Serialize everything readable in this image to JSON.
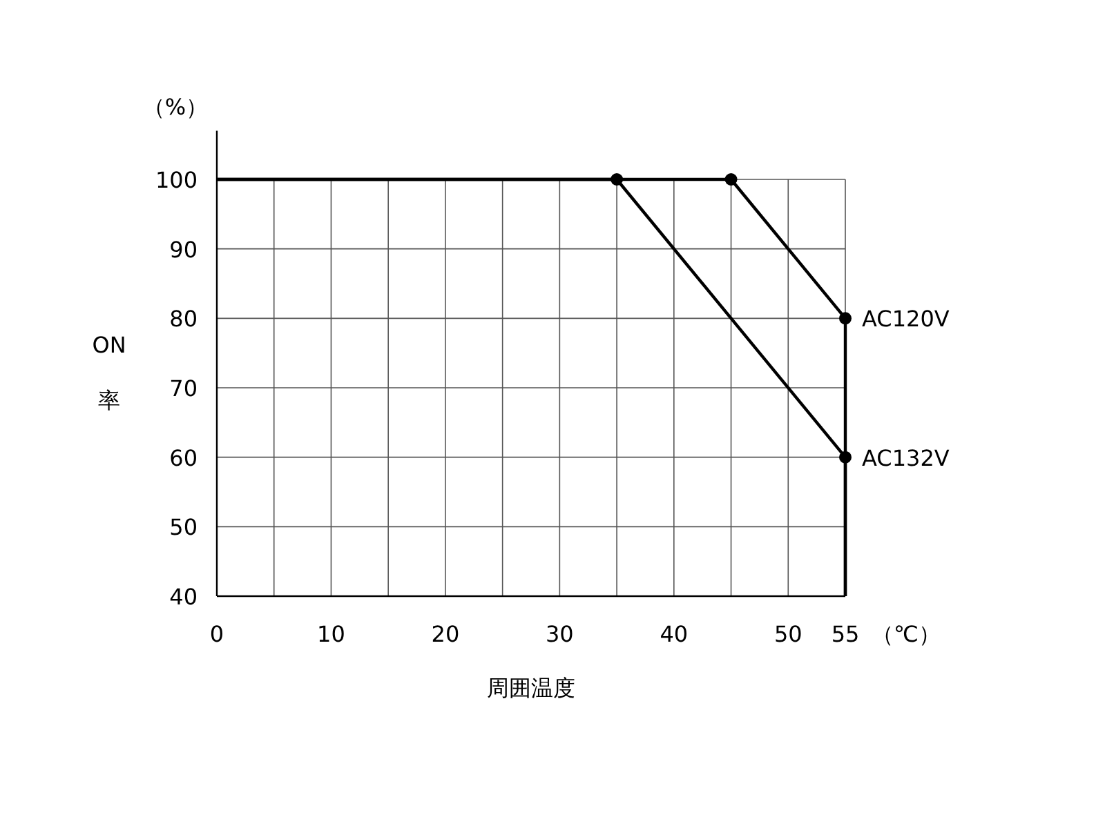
{
  "chart_data": {
    "type": "line",
    "ylabel": "ON 率",
    "xlabel": "周囲温度",
    "annotations": [
      "（%）",
      "（℃）"
    ],
    "xlim": [
      0,
      55
    ],
    "ylim": [
      40,
      107
    ],
    "xticks": [
      0,
      {
        "value": 5,
        "label": null
      },
      10,
      {
        "value": 15,
        "label": null
      },
      20,
      {
        "value": 25,
        "label": null
      },
      30,
      {
        "value": 35,
        "label": null
      },
      40,
      {
        "value": 45,
        "label": null
      },
      50,
      55
    ],
    "yticks": [
      40,
      50,
      60,
      70,
      80,
      90,
      100
    ],
    "grid": true,
    "legend": false,
    "line_style": "solid",
    "series": [
      {
        "name": "AC120V",
        "color": "#000000",
        "x": [
          0,
          45,
          55,
          55
        ],
        "values": [
          100,
          100,
          80,
          40
        ],
        "marker": "none"
      },
      {
        "name": "AC132V",
        "color": "#000000",
        "x": [
          0,
          35,
          55,
          55
        ],
        "values": [
          100,
          100,
          60,
          40
        ],
        "marker": "none"
      },
      {
        "type": "scatter",
        "color": "#000000",
        "x": [
          35,
          45,
          55,
          55
        ],
        "values": [
          100,
          100,
          80,
          60
        ],
        "marker": "circle"
      }
    ]
  }
}
